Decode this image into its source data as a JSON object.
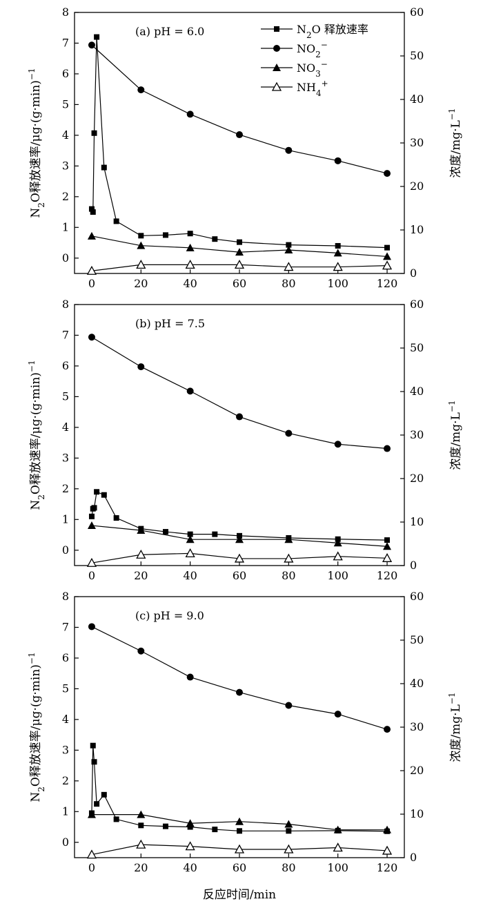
{
  "xlabel": "反应时间/min",
  "ylabel_left_parts": [
    "N",
    "2",
    "O释放速率/μg·(g·min)",
    "−1"
  ],
  "ylabel_right_parts": [
    "浓度/mg·L",
    "−1"
  ],
  "legend": [
    {
      "key": "n2o",
      "parts": [
        "N",
        "2",
        "O 释放速率"
      ],
      "sub_index": 1,
      "sup_index": -1
    },
    {
      "key": "no2",
      "parts": [
        "NO",
        "2",
        "−"
      ],
      "sub_index": 1,
      "sup_index": 2
    },
    {
      "key": "no3",
      "parts": [
        "NO",
        "3",
        "−"
      ],
      "sub_index": 1,
      "sup_index": 2
    },
    {
      "key": "nh4",
      "parts": [
        "NH",
        "4",
        "+"
      ],
      "sub_index": 1,
      "sup_index": 2
    }
  ],
  "chart_data": [
    {
      "type": "line",
      "title": "(a) pH = 6.0",
      "xlabel": "反应时间/min",
      "ylabel": "N2O释放速率/μg·(g·min)−1",
      "ylabel_right": "浓度/mg·L−1",
      "xlim": [
        -7,
        127
      ],
      "ylim_left": [
        -0.5,
        8
      ],
      "ylim_right": [
        0,
        60
      ],
      "x_ticks": [
        0,
        20,
        40,
        60,
        80,
        100,
        120
      ],
      "y_left_ticks": [
        0,
        1,
        2,
        3,
        4,
        5,
        6,
        7,
        8
      ],
      "y_right_ticks": [
        0,
        10,
        20,
        30,
        40,
        50,
        60
      ],
      "series": [
        {
          "name": "N2O 释放速率",
          "axis": "left",
          "marker": "square",
          "x": [
            0,
            0.5,
            1,
            2,
            5,
            10,
            20,
            30,
            40,
            50,
            60,
            80,
            100,
            120
          ],
          "y": [
            1.6,
            1.5,
            4.07,
            7.2,
            2.95,
            1.2,
            0.73,
            0.75,
            0.8,
            0.62,
            0.52,
            0.43,
            0.4,
            0.34
          ]
        },
        {
          "name": "NO2−",
          "axis": "right",
          "marker": "circle",
          "x": [
            0,
            20,
            40,
            60,
            80,
            100,
            120
          ],
          "y": [
            52.5,
            42.2,
            36.6,
            31.9,
            28.3,
            25.9,
            23.0
          ]
        },
        {
          "name": "NO3−",
          "axis": "right",
          "marker": "triangle",
          "x": [
            0,
            20,
            40,
            60,
            80,
            100,
            120
          ],
          "y": [
            8.6,
            6.4,
            5.9,
            4.9,
            5.4,
            4.7,
            3.9
          ]
        },
        {
          "name": "NH4+",
          "axis": "right",
          "marker": "triangle-open",
          "x": [
            0,
            20,
            40,
            60,
            80,
            100,
            120
          ],
          "y": [
            0.6,
            2.0,
            2.0,
            2.0,
            1.5,
            1.5,
            1.8
          ]
        }
      ]
    },
    {
      "type": "line",
      "title": "(b) pH = 7.5",
      "xlabel": "反应时间/min",
      "ylabel": "N2O释放速率/μg·(g·min)−1",
      "ylabel_right": "浓度/mg·L−1",
      "xlim": [
        -7,
        127
      ],
      "ylim_left": [
        -0.5,
        8
      ],
      "ylim_right": [
        0,
        60
      ],
      "x_ticks": [
        0,
        20,
        40,
        60,
        80,
        100,
        120
      ],
      "y_left_ticks": [
        0,
        1,
        2,
        3,
        4,
        5,
        6,
        7,
        8
      ],
      "y_right_ticks": [
        0,
        10,
        20,
        30,
        40,
        50,
        60
      ],
      "series": [
        {
          "name": "N2O 释放速率",
          "axis": "left",
          "marker": "square",
          "x": [
            0,
            0.5,
            1,
            2,
            5,
            10,
            20,
            30,
            40,
            50,
            60,
            80,
            100,
            120
          ],
          "y": [
            1.1,
            1.35,
            1.38,
            1.9,
            1.8,
            1.05,
            0.7,
            0.6,
            0.52,
            0.52,
            0.47,
            0.4,
            0.36,
            0.33
          ]
        },
        {
          "name": "NO2−",
          "axis": "right",
          "marker": "circle",
          "x": [
            0,
            20,
            40,
            60,
            80,
            100,
            120
          ],
          "y": [
            52.5,
            45.7,
            40.1,
            34.2,
            30.4,
            27.9,
            26.9
          ]
        },
        {
          "name": "NO3−",
          "axis": "right",
          "marker": "triangle",
          "x": [
            0,
            20,
            40,
            60,
            80,
            100,
            120
          ],
          "y": [
            9.2,
            8.1,
            6.0,
            6.0,
            6.0,
            5.2,
            4.4
          ]
        },
        {
          "name": "NH4+",
          "axis": "right",
          "marker": "triangle-open",
          "x": [
            0,
            20,
            40,
            60,
            80,
            100,
            120
          ],
          "y": [
            0.6,
            2.5,
            2.8,
            1.6,
            1.6,
            2.1,
            1.7
          ]
        }
      ]
    },
    {
      "type": "line",
      "title": "(c) pH = 9.0",
      "xlabel": "反应时间/min",
      "ylabel": "N2O释放速率/μg·(g·min)−1",
      "ylabel_right": "浓度/mg·L−1",
      "xlim": [
        -7,
        127
      ],
      "ylim_left": [
        -0.5,
        8
      ],
      "ylim_right": [
        0,
        60
      ],
      "x_ticks": [
        0,
        20,
        40,
        60,
        80,
        100,
        120
      ],
      "y_left_ticks": [
        0,
        1,
        2,
        3,
        4,
        5,
        6,
        7,
        8
      ],
      "y_right_ticks": [
        0,
        10,
        20,
        30,
        40,
        50,
        60
      ],
      "series": [
        {
          "name": "N2O 释放速率",
          "axis": "left",
          "marker": "square",
          "x": [
            0,
            0.5,
            1,
            2,
            5,
            10,
            20,
            30,
            40,
            50,
            60,
            80,
            100,
            120
          ],
          "y": [
            0.95,
            3.15,
            2.62,
            1.25,
            1.55,
            0.75,
            0.55,
            0.52,
            0.5,
            0.42,
            0.37,
            0.37,
            0.38,
            0.36
          ]
        },
        {
          "name": "NO2−",
          "axis": "right",
          "marker": "circle",
          "x": [
            0,
            20,
            40,
            60,
            80,
            100,
            120
          ],
          "y": [
            53.1,
            47.5,
            41.5,
            38.0,
            35.0,
            33.0,
            29.5
          ]
        },
        {
          "name": "NO3−",
          "axis": "right",
          "marker": "triangle",
          "x": [
            0,
            20,
            40,
            60,
            80,
            100,
            120
          ],
          "y": [
            9.9,
            9.9,
            7.9,
            8.3,
            7.7,
            6.4,
            6.4
          ]
        },
        {
          "name": "NH4+",
          "axis": "right",
          "marker": "triangle-open",
          "x": [
            0,
            20,
            40,
            60,
            80,
            100,
            120
          ],
          "y": [
            0.7,
            3.0,
            2.6,
            1.9,
            1.9,
            2.3,
            1.6
          ]
        }
      ]
    }
  ]
}
